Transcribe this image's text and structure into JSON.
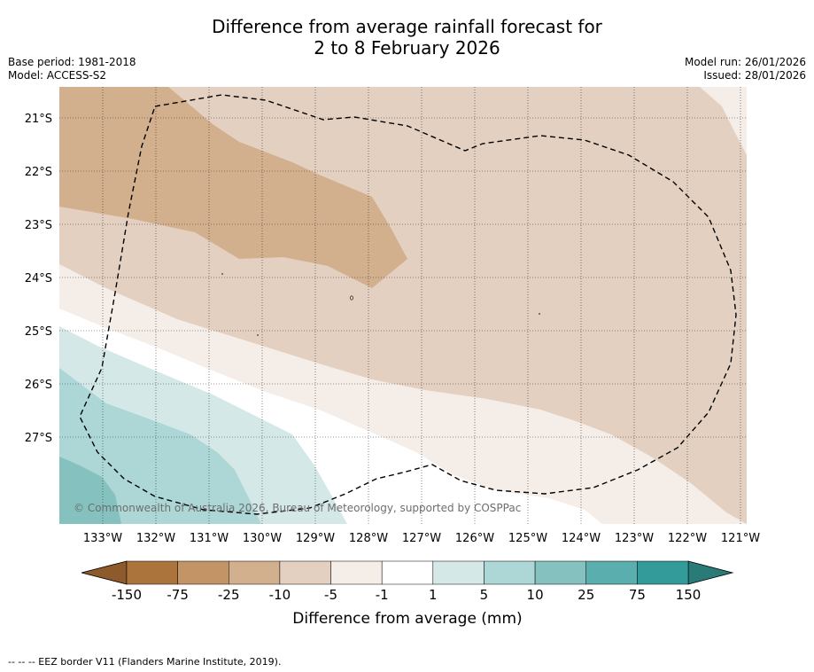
{
  "header": {
    "title_line1": "Difference from average rainfall forecast for",
    "title_line2": "2 to 8 February 2026",
    "base_period": "Base period: 1981-2018",
    "model": "Model: ACCESS-S2",
    "model_run": "Model run: 26/01/2026",
    "issued": "Issued: 28/01/2026"
  },
  "map": {
    "lat_labels": [
      "21°S",
      "22°S",
      "23°S",
      "24°S",
      "25°S",
      "26°S",
      "27°S"
    ],
    "lon_labels": [
      "133°W",
      "132°W",
      "131°W",
      "130°W",
      "129°W",
      "128°W",
      "127°W",
      "126°W",
      "125°W",
      "124°W",
      "123°W",
      "122°W",
      "121°W"
    ],
    "copyright": "© Commonwealth of Australia 2026, Bureau of Meteorology, supported by COSPPac"
  },
  "colorbar": {
    "ticks": [
      "-150",
      "-75",
      "-25",
      "-10",
      "-5",
      "-1",
      "1",
      "5",
      "10",
      "25",
      "75",
      "150"
    ],
    "colors": [
      "#ab743d",
      "#c29466",
      "#d2af8d",
      "#e3d0c0",
      "#f5ede7",
      "#ffffff",
      "#d4e8e8",
      "#add6d6",
      "#84c1bf",
      "#5baeae",
      "#339b99"
    ],
    "under_color": "#8d5a2b",
    "over_color": "#2a7a78",
    "label": "Difference from average (mm)"
  },
  "footer": {
    "legend": "--  --  -- EEZ border V11 (Flanders Marine Institute, 2019)."
  }
}
